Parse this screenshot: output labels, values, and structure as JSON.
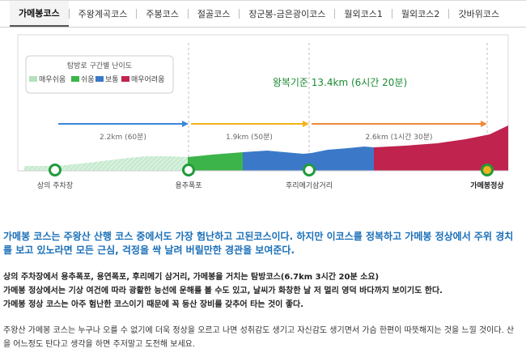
{
  "tabs": [
    {
      "label": "가메봉코스",
      "active": true
    },
    {
      "label": "주왕계곡코스",
      "active": false
    },
    {
      "label": "주봉코스",
      "active": false
    },
    {
      "label": "절골코스",
      "active": false
    },
    {
      "label": "장군봉-금은광이코스",
      "active": false
    },
    {
      "label": "월외코스1",
      "active": false
    },
    {
      "label": "월외코스2",
      "active": false
    },
    {
      "label": "갓바위코스",
      "active": false
    }
  ],
  "legend": {
    "title": "탐방로 구간별 난이도",
    "items": [
      {
        "label": "매우쉬움",
        "color": "#b6e0bf"
      },
      {
        "label": "쉬움",
        "color": "#3cb44a"
      },
      {
        "label": "보통",
        "color": "#3b79c8"
      },
      {
        "label": "매우어려움",
        "color": "#c0234e"
      }
    ]
  },
  "summary": "왕복기준 13.4km (6시간 20분)",
  "segments": [
    {
      "label": "2.2km (60분)",
      "color": "#3b86d6"
    },
    {
      "label": "1.9km (50분)",
      "color": "#f3b31b"
    },
    {
      "label": "2.6km (1시간 30분)",
      "color": "#f08a3a"
    }
  ],
  "points": [
    {
      "label": "상의 주차장"
    },
    {
      "label": "용추폭포"
    },
    {
      "label": "후리메기삼거리"
    },
    {
      "label": "가메봉정상"
    }
  ],
  "text": {
    "lead": "가메봉 코스는 주왕산 산행 코스 중에서도 가장 험난하고 고된코스이다. 하지만 이코스를 정복하고 가메봉 정상에서 주위 경치를 보고 있노라면 모든 근심, 걱정을 싹 날려 버릴만한 경관을 보여준다.",
    "info": [
      "상의 주차장에서 용추폭포, 용연폭포, 후리메기 삼거리, 가메봉을 거치는 탐방코스(6.7km 3시간 20분 소요)",
      "가메봉 정상에서는 기상 여건에 따라 광활한 능선에 운해를 볼 수도 있고, 날씨가 화창한 날 저 멀리 영덕 바다까지 보이기도 한다.",
      "가메봉 정상 코스는 아주 험난한 코스이기 때문에 꼭 등산 장비를 갖추어 타는 것이 좋다."
    ],
    "closing": "주왕산 가메봉 코스는 누구나 오를 수 없기에 더욱 정상을 오르고 나면 성취감도 생기고 자신감도 생기면서 가슴 한편이 따뜻해지는 것을 느낄 것이다. 산을 어느정도 탄다고 생각을 하면 주저말고 도전해 보세요."
  }
}
